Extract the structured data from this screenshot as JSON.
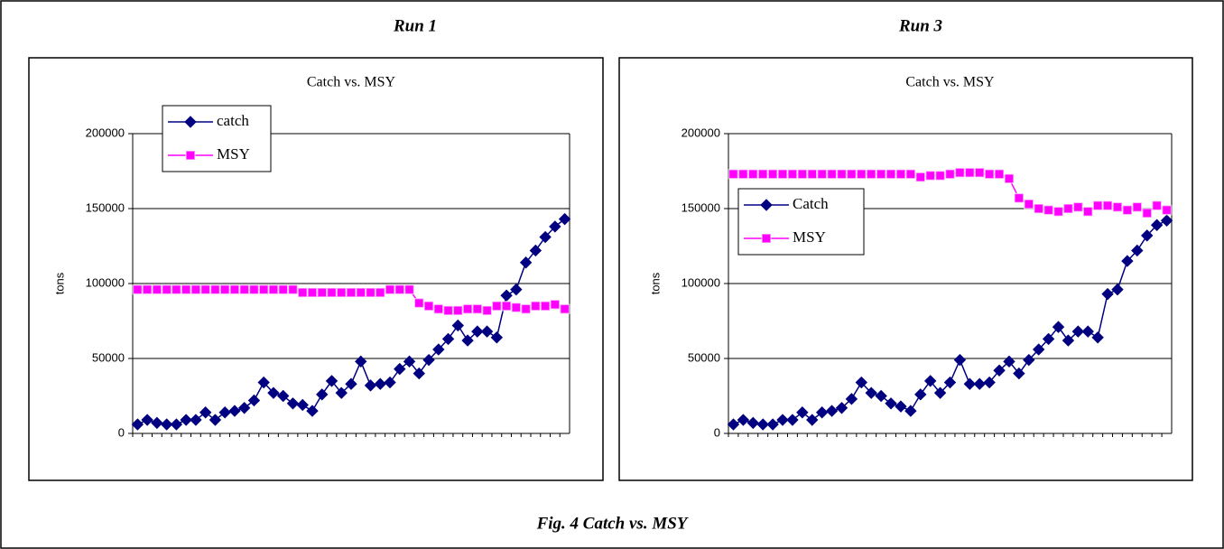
{
  "caption": "Fig. 4 Catch vs. MSY",
  "chart_data": [
    {
      "type": "line",
      "heading": "Run 1",
      "title": "Catch vs. MSY",
      "y_label": "tons",
      "categories": [
        null,
        null,
        null,
        null,
        null,
        null,
        null,
        null,
        null,
        null,
        null,
        null,
        null,
        null,
        null,
        null,
        null,
        null,
        null,
        null,
        null,
        null,
        null,
        null,
        null,
        null,
        null,
        null,
        null,
        null,
        null,
        null,
        null,
        null,
        null,
        null,
        null,
        null,
        null,
        null,
        null,
        null,
        null,
        null,
        null
      ],
      "series": [
        {
          "name": "catch",
          "color": "#000080",
          "marker": "diamond",
          "values": [
            6000,
            9000,
            7000,
            6000,
            6000,
            9000,
            9000,
            14000,
            9000,
            14000,
            15000,
            17000,
            22000,
            34000,
            27000,
            25000,
            20000,
            19000,
            15000,
            26000,
            35000,
            27000,
            33000,
            48000,
            32000,
            33000,
            34000,
            43000,
            48000,
            40000,
            49000,
            56000,
            63000,
            72000,
            62000,
            68000,
            68000,
            64000,
            92000,
            96000,
            114000,
            122000,
            131000,
            138000,
            143000
          ]
        },
        {
          "name": "MSY",
          "color": "#ff00ff",
          "marker": "square",
          "values": [
            96000,
            96000,
            96000,
            96000,
            96000,
            96000,
            96000,
            96000,
            96000,
            96000,
            96000,
            96000,
            96000,
            96000,
            96000,
            96000,
            96000,
            94000,
            94000,
            94000,
            94000,
            94000,
            94000,
            94000,
            94000,
            94000,
            96000,
            96000,
            96000,
            87000,
            85000,
            83000,
            82000,
            82000,
            83000,
            83000,
            82000,
            85000,
            85000,
            84000,
            83000,
            85000,
            85000,
            86000,
            83000
          ]
        }
      ],
      "ylim": [
        0,
        200000
      ],
      "yticks": [
        0,
        50000,
        100000,
        150000,
        200000
      ],
      "grid": true,
      "legend": "upper left"
    },
    {
      "type": "line",
      "heading": "Run 3",
      "title": "Catch vs. MSY",
      "y_label": "tons",
      "categories": [
        null,
        null,
        null,
        null,
        null,
        null,
        null,
        null,
        null,
        null,
        null,
        null,
        null,
        null,
        null,
        null,
        null,
        null,
        null,
        null,
        null,
        null,
        null,
        null,
        null,
        null,
        null,
        null,
        null,
        null,
        null,
        null,
        null,
        null,
        null,
        null,
        null,
        null,
        null,
        null,
        null,
        null,
        null,
        null,
        null
      ],
      "series": [
        {
          "name": "Catch",
          "color": "#000080",
          "marker": "diamond",
          "values": [
            6000,
            9000,
            7000,
            6000,
            6000,
            9000,
            9000,
            14000,
            9000,
            14000,
            15000,
            17000,
            23000,
            34000,
            27000,
            25000,
            20000,
            18000,
            15000,
            26000,
            35000,
            27000,
            34000,
            49000,
            33000,
            33000,
            34000,
            42000,
            48000,
            40000,
            49000,
            56000,
            63000,
            71000,
            62000,
            68000,
            68000,
            64000,
            93000,
            96000,
            115000,
            122000,
            132000,
            139000,
            142000
          ]
        },
        {
          "name": "MSY",
          "color": "#ff00ff",
          "marker": "square",
          "values": [
            173000,
            173000,
            173000,
            173000,
            173000,
            173000,
            173000,
            173000,
            173000,
            173000,
            173000,
            173000,
            173000,
            173000,
            173000,
            173000,
            173000,
            173000,
            173000,
            171000,
            172000,
            172000,
            173000,
            174000,
            174000,
            174000,
            173000,
            173000,
            170000,
            157000,
            153000,
            150000,
            149000,
            148000,
            150000,
            151000,
            148000,
            152000,
            152000,
            151000,
            149000,
            151000,
            147000,
            152000,
            149000
          ]
        }
      ],
      "ylim": [
        0,
        200000
      ],
      "yticks": [
        0,
        50000,
        100000,
        150000,
        200000
      ],
      "grid": true,
      "legend": "center left"
    }
  ]
}
